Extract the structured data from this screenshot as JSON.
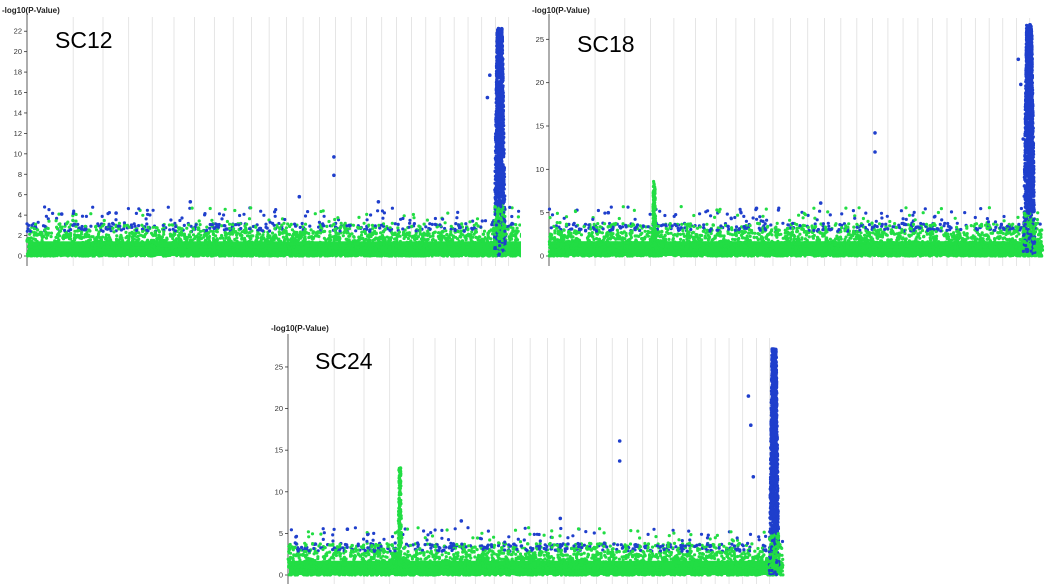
{
  "chart_data": [
    {
      "type": "scatter",
      "title": "SC12",
      "ylabel": "-log10(P-Value)",
      "ylim": [
        0,
        23
      ],
      "yticks": [
        0,
        2,
        4,
        6,
        8,
        10,
        12,
        14,
        16,
        18,
        20,
        22
      ],
      "series_colors": [
        "#1f3fcc",
        "#22dd44"
      ],
      "grid": true,
      "noise_max": 3.2,
      "peaks": [
        {
          "x": 0.955,
          "height": 22.3,
          "width": 0.012
        }
      ],
      "outliers": [
        {
          "x": 0.33,
          "y": 5.3
        },
        {
          "x": 0.55,
          "y": 5.8
        },
        {
          "x": 0.62,
          "y": 9.7
        },
        {
          "x": 0.62,
          "y": 7.9
        },
        {
          "x": 0.71,
          "y": 5.3
        },
        {
          "x": 0.18,
          "y": 4.2
        },
        {
          "x": 0.07,
          "y": 4.1
        },
        {
          "x": 0.93,
          "y": 15.5
        },
        {
          "x": 0.935,
          "y": 17.7
        }
      ]
    },
    {
      "type": "scatter",
      "title": "SC18",
      "ylabel": "-log10(P-Value)",
      "ylim": [
        0,
        27
      ],
      "yticks": [
        0,
        5,
        10,
        15,
        20,
        25
      ],
      "series_colors": [
        "#1f3fcc",
        "#22dd44"
      ],
      "grid": true,
      "noise_max": 3.8,
      "peaks": [
        {
          "x": 0.972,
          "height": 26.7,
          "width": 0.012
        },
        {
          "x": 0.213,
          "height": 8.6,
          "width": 0.004
        }
      ],
      "outliers": [
        {
          "x": 0.66,
          "y": 14.2
        },
        {
          "x": 0.66,
          "y": 12.0
        },
        {
          "x": 0.55,
          "y": 6.1
        },
        {
          "x": 0.42,
          "y": 5.5
        },
        {
          "x": 0.12,
          "y": 5.0
        },
        {
          "x": 0.95,
          "y": 22.7
        },
        {
          "x": 0.955,
          "y": 19.8
        },
        {
          "x": 0.96,
          "y": 13.5
        }
      ]
    },
    {
      "type": "scatter",
      "title": "SC24",
      "ylabel": "-log10(P-Value)",
      "ylim": [
        0,
        28
      ],
      "yticks": [
        0,
        5,
        10,
        15,
        20,
        25
      ],
      "series_colors": [
        "#1f3fcc",
        "#22dd44"
      ],
      "grid": true,
      "noise_max": 3.8,
      "peaks": [
        {
          "x": 0.982,
          "height": 27.2,
          "width": 0.01
        },
        {
          "x": 0.226,
          "height": 13.0,
          "width": 0.004
        }
      ],
      "outliers": [
        {
          "x": 0.67,
          "y": 16.1
        },
        {
          "x": 0.67,
          "y": 13.7
        },
        {
          "x": 0.55,
          "y": 6.8
        },
        {
          "x": 0.35,
          "y": 6.5
        },
        {
          "x": 0.93,
          "y": 21.5
        },
        {
          "x": 0.935,
          "y": 18.0
        },
        {
          "x": 0.94,
          "y": 11.8
        },
        {
          "x": 0.12,
          "y": 5.5
        }
      ]
    }
  ]
}
